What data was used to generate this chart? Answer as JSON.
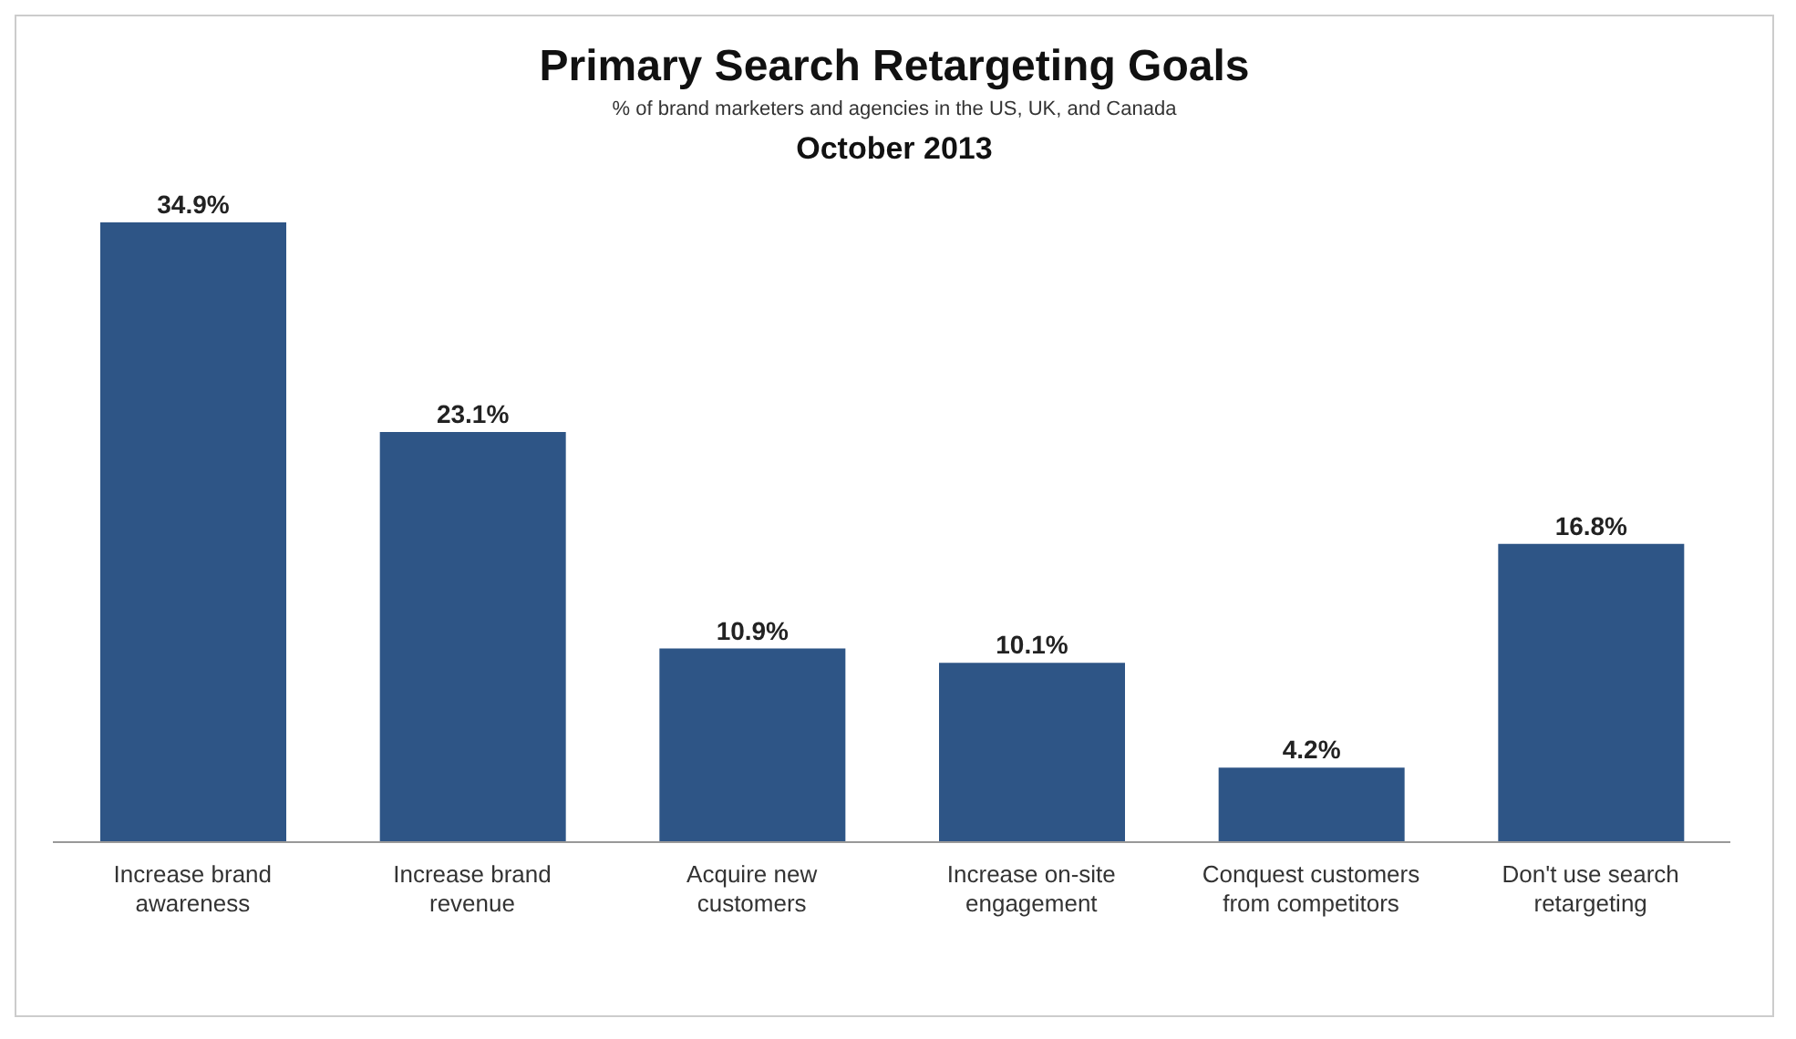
{
  "chart_data": {
    "type": "bar",
    "title": "Primary Search Retargeting Goals",
    "subtitle": "% of brand marketers and agencies in the US, UK, and Canada",
    "annotations": [
      "October 2013"
    ],
    "categories": [
      "Increase brand awareness",
      "Increase brand revenue",
      "Acquire new customers",
      "Increase on-site engagement",
      "Conquest customers from competitors",
      "Don't use search retargeting"
    ],
    "values": [
      34.9,
      23.1,
      10.9,
      10.1,
      4.2,
      16.8
    ],
    "value_labels": [
      "34.9%",
      "23.1%",
      "10.9%",
      "10.1%",
      "4.2%",
      "16.8%"
    ],
    "color": "#2e5586",
    "grid": false,
    "legend": false
  }
}
